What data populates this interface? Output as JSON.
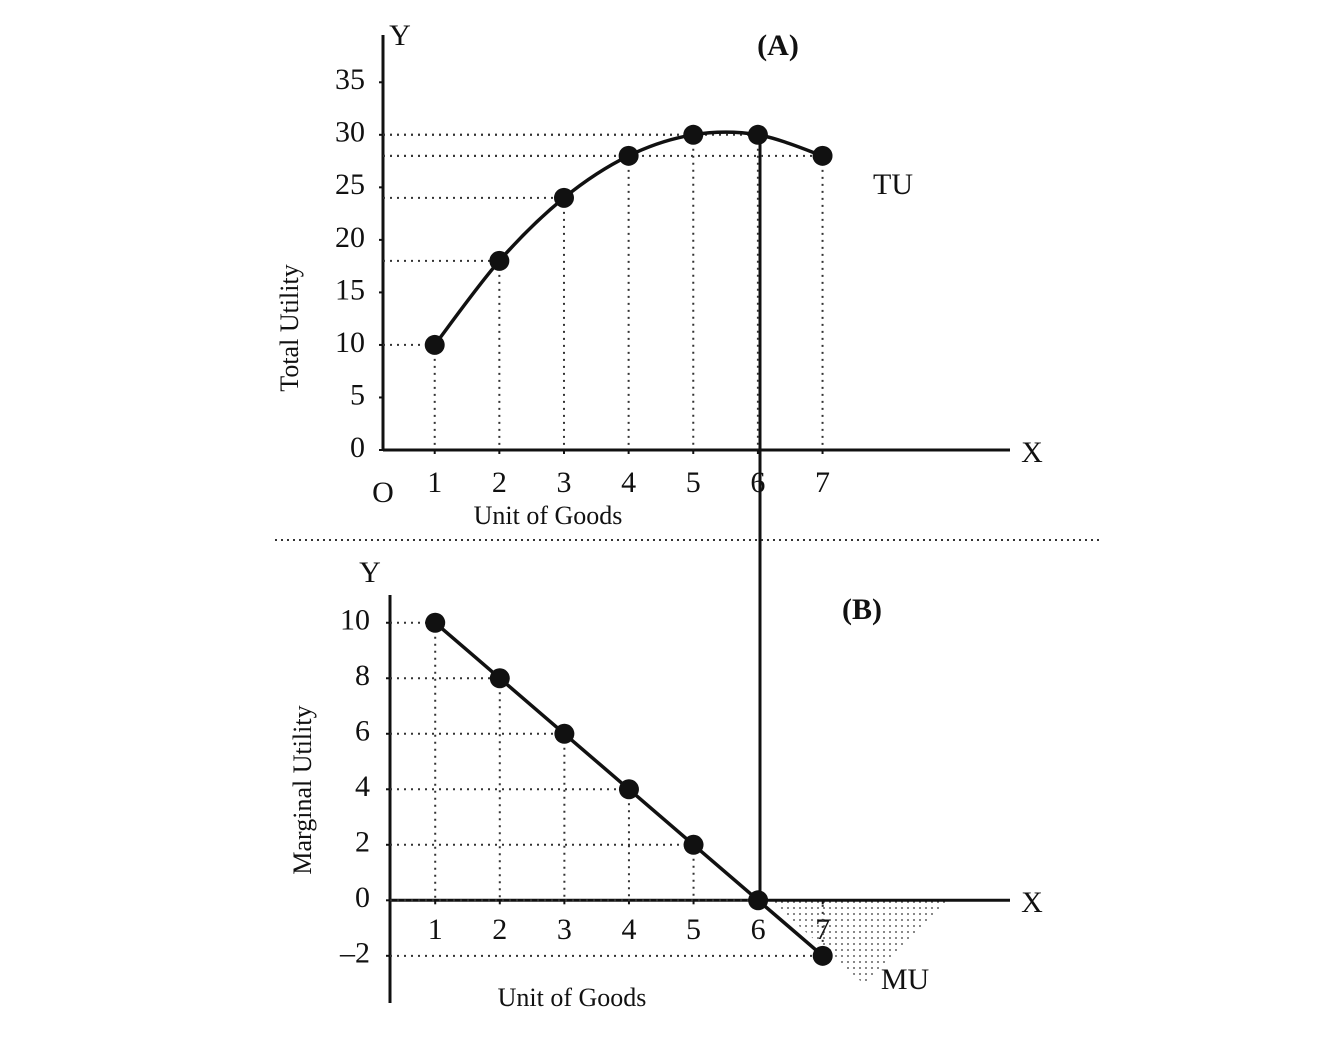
{
  "chart_data": [
    {
      "type": "line",
      "title": "(A)",
      "y_label": "Total Utility",
      "x_label": "Unit of Goods",
      "y_axis_letter": "Y",
      "x_axis_letter": "X",
      "origin_label": "O",
      "x": [
        1,
        2,
        3,
        4,
        5,
        6,
        7
      ],
      "series": [
        {
          "name": "TU",
          "color": "#111111",
          "values": [
            10,
            18,
            24,
            28,
            30,
            30,
            28
          ]
        }
      ],
      "xlim": [
        0.2,
        9.9
      ],
      "ylim": [
        0,
        39.5
      ],
      "xticks": [
        1,
        2,
        3,
        4,
        5,
        6,
        7
      ],
      "yticks": [
        0,
        5,
        10,
        15,
        20,
        25,
        30,
        35
      ]
    },
    {
      "type": "line",
      "title": "(B)",
      "y_label": "Marginal Utility",
      "x_label": "Unit of Goods",
      "y_axis_letter": "Y",
      "x_axis_letter": "X",
      "x": [
        1,
        2,
        3,
        4,
        5,
        6,
        7
      ],
      "series": [
        {
          "name": "MU",
          "color": "#111111",
          "values": [
            10,
            8,
            6,
            4,
            2,
            0,
            -2
          ]
        }
      ],
      "xlim": [
        0.3,
        9.9
      ],
      "ylim": [
        -3.7,
        11
      ],
      "xticks": [
        1,
        2,
        3,
        4,
        5,
        6,
        7
      ],
      "yticks": [
        {
          "value": -2,
          "label": "–2"
        },
        0,
        2,
        4,
        6,
        8,
        10
      ]
    }
  ]
}
